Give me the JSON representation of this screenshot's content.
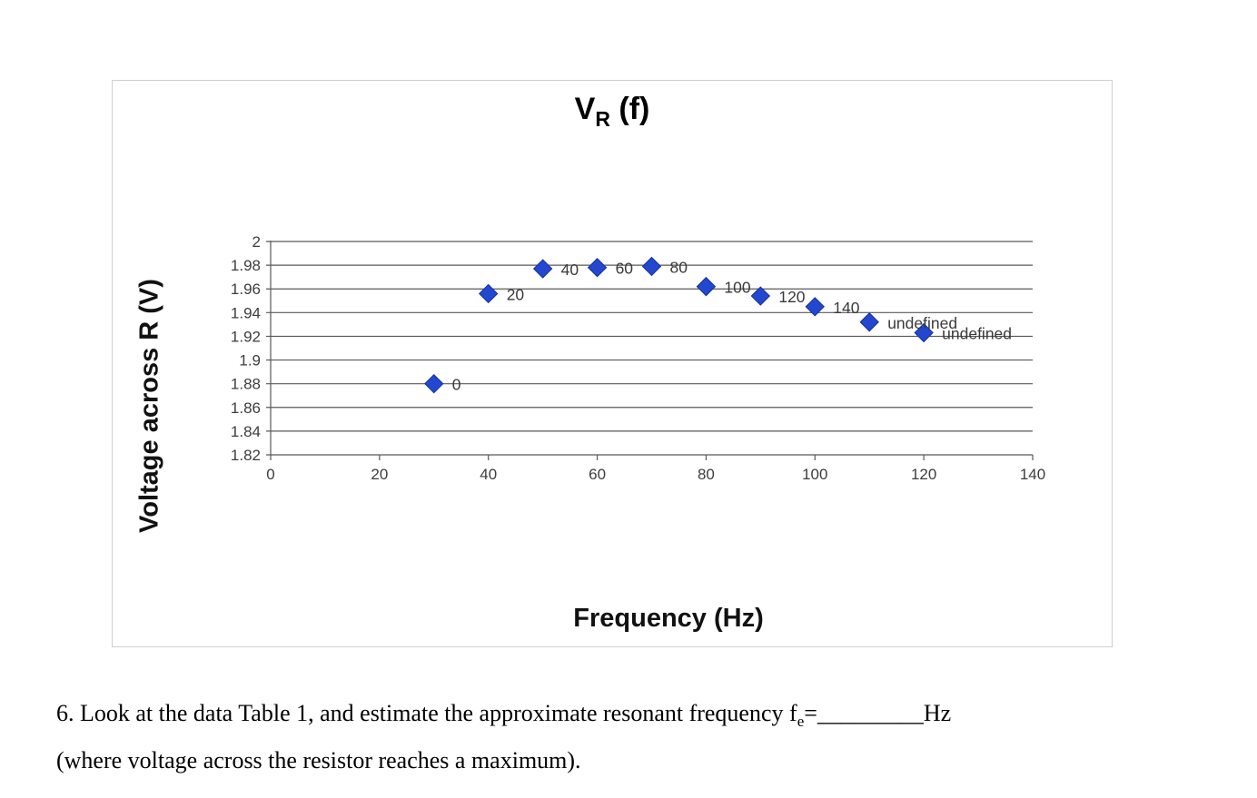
{
  "chart_data": {
    "type": "scatter",
    "title": "VR (f)",
    "title_parts": {
      "main": "V",
      "sub": "R",
      "suffix": " (f)"
    },
    "xlabel": "Frequency (Hz)",
    "ylabel": "Voltage across R (V)",
    "xlim": [
      0,
      140
    ],
    "ylim": [
      1.82,
      2.0
    ],
    "xticks": [
      "0",
      "20",
      "40",
      "60",
      "80",
      "100",
      "120",
      "140"
    ],
    "yticks": [
      "2",
      "1.98",
      "1.96",
      "1.94",
      "1.92",
      "1.9",
      "1.88",
      "1.86",
      "1.84",
      "1.82"
    ],
    "grid": true,
    "grid_color": "#595959",
    "legend": "none",
    "marker_color": "#2447d0",
    "marker_edge": "#16309c",
    "marker_size": 10,
    "label_offset": {
      "dx": 20,
      "dy": 7
    },
    "points": [
      {
        "x": 30,
        "y": 1.88,
        "label": "0"
      },
      {
        "x": 40,
        "y": 1.956,
        "label": "20"
      },
      {
        "x": 50,
        "y": 1.977,
        "label": "40"
      },
      {
        "x": 60,
        "y": 1.978,
        "label": "60"
      },
      {
        "x": 70,
        "y": 1.979,
        "label": "80"
      },
      {
        "x": 80,
        "y": 1.962,
        "label": "100"
      },
      {
        "x": 90,
        "y": 1.954,
        "label": "120"
      },
      {
        "x": 100,
        "y": 1.945,
        "label": "140"
      },
      {
        "x": 110,
        "y": 1.932,
        "label": "undefined"
      },
      {
        "x": 120,
        "y": 1.923,
        "label": "undefined"
      }
    ]
  },
  "question": {
    "line1_text": "6. Look at the data Table 1, and estimate the approximate resonant frequency f",
    "subscript": "e",
    "equals": "=",
    "blank": "_________",
    "unit": "Hz",
    "line2": "(where voltage across the resistor reaches a maximum)."
  }
}
